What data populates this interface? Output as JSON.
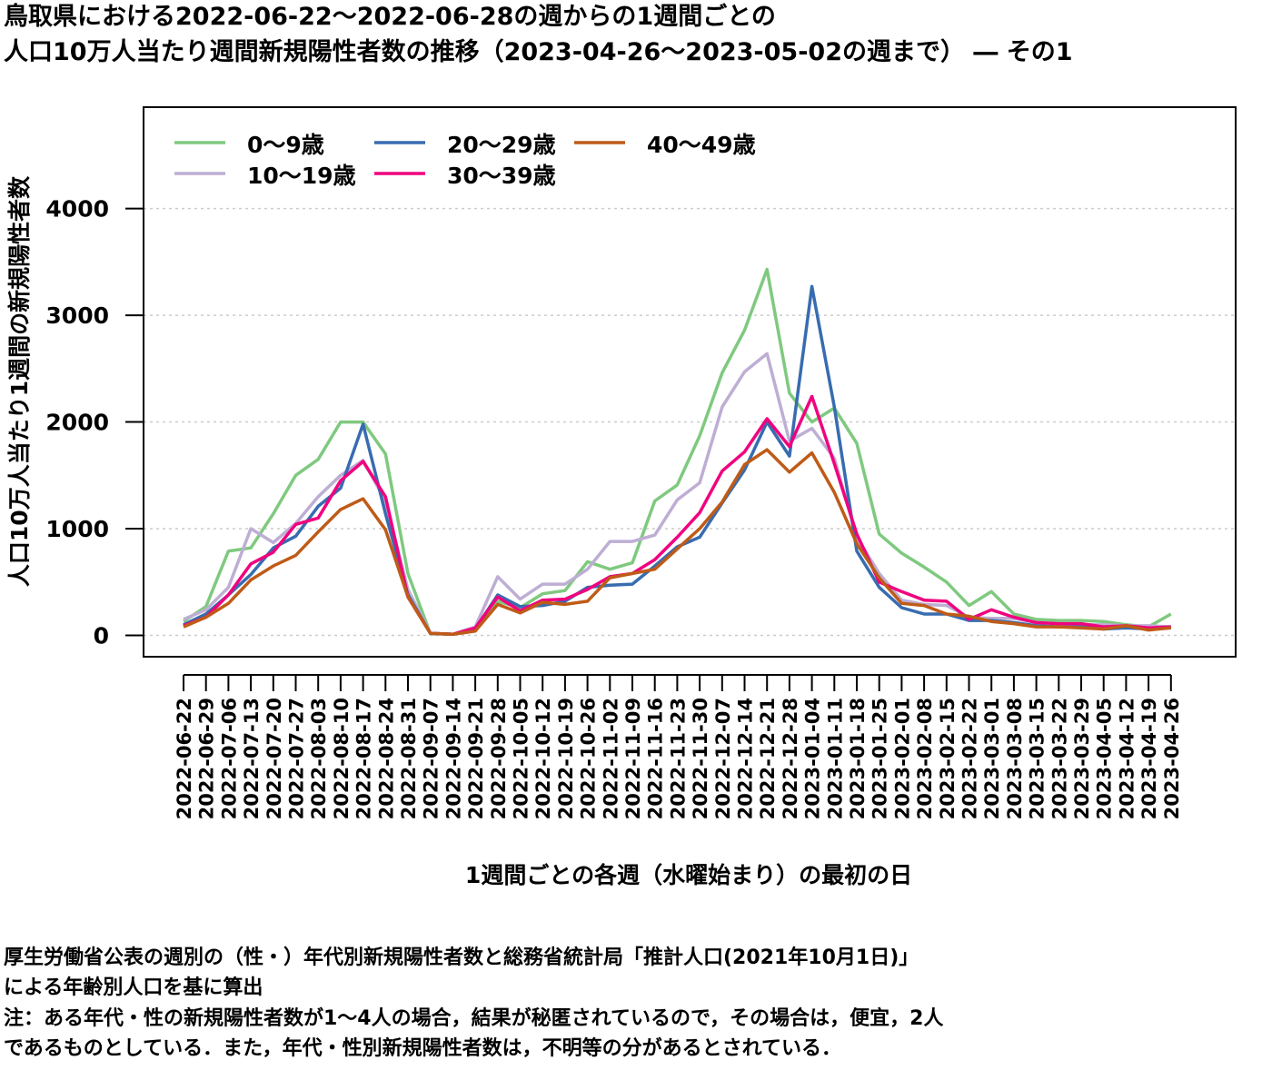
{
  "title_line1": "鳥取県における2022-06-22〜2022-06-28の週からの1週間ごとの",
  "title_line2": "人口10万人当たり週間新規陽性者数の推移（2023-04-26〜2023-05-02の週まで） ― その1",
  "notes": [
    "厚生労働省公表の週別の（性・）年代別新規陽性者数と総務省統計局「推計人口(2021年10月1日)」",
    "による年齢別人口を基に算出",
    "注：ある年代・性の新規陽性者数が1〜4人の場合，結果が秘匿されているので，その場合は，便宜，2人",
    "であるものとしている．また，年代・性別新規陽性者数は，不明等の分があるとされている．"
  ],
  "chart_data": {
    "type": "line",
    "xlabel": "1週間ごとの各週（水曜始まり）の最初の日",
    "ylabel": "人口10万人当たり1週間の新規陽性者数",
    "ylim": [
      -200,
      4950
    ],
    "yticks": [
      0,
      1000,
      2000,
      3000,
      4000
    ],
    "grid": "horizontal dotted",
    "legend_position": "top-left",
    "categories": [
      "2022-06-22",
      "2022-06-29",
      "2022-07-06",
      "2022-07-13",
      "2022-07-20",
      "2022-07-27",
      "2022-08-03",
      "2022-08-10",
      "2022-08-17",
      "2022-08-24",
      "2022-08-31",
      "2022-09-07",
      "2022-09-14",
      "2022-09-21",
      "2022-09-28",
      "2022-10-05",
      "2022-10-12",
      "2022-10-19",
      "2022-10-26",
      "2022-11-02",
      "2022-11-09",
      "2022-11-16",
      "2022-11-23",
      "2022-11-30",
      "2022-12-07",
      "2022-12-14",
      "2022-12-21",
      "2022-12-28",
      "2023-01-04",
      "2023-01-11",
      "2023-01-18",
      "2023-01-25",
      "2023-02-01",
      "2023-02-08",
      "2023-02-15",
      "2023-02-22",
      "2023-03-01",
      "2023-03-08",
      "2023-03-15",
      "2023-03-22",
      "2023-03-29",
      "2023-04-05",
      "2023-04-12",
      "2023-04-19",
      "2023-04-26"
    ],
    "series": [
      {
        "name": "0〜9歳",
        "color": "#7fc97f",
        "values": [
          130,
          270,
          790,
          820,
          1140,
          1500,
          1650,
          2000,
          2000,
          1700,
          580,
          15,
          10,
          60,
          320,
          260,
          390,
          420,
          690,
          620,
          680,
          1260,
          1410,
          1870,
          2460,
          2860,
          3430,
          2270,
          2000,
          2130,
          1800,
          950,
          770,
          640,
          500,
          280,
          410,
          200,
          150,
          140,
          140,
          130,
          100,
          80,
          200
        ]
      },
      {
        "name": "10〜19歳",
        "color": "#beaed4",
        "values": [
          150,
          240,
          450,
          1000,
          870,
          1050,
          1300,
          1500,
          1640,
          1260,
          430,
          20,
          10,
          80,
          550,
          340,
          480,
          480,
          620,
          880,
          880,
          940,
          1270,
          1430,
          2140,
          2470,
          2640,
          1820,
          1940,
          1660,
          920,
          580,
          330,
          290,
          280,
          170,
          160,
          160,
          120,
          110,
          100,
          100,
          90,
          90,
          80
        ]
      },
      {
        "name": "20〜29歳",
        "color": "#386cb0",
        "values": [
          100,
          200,
          380,
          570,
          820,
          930,
          1210,
          1380,
          1980,
          1140,
          380,
          20,
          10,
          60,
          380,
          270,
          280,
          320,
          450,
          470,
          480,
          650,
          830,
          920,
          1240,
          1550,
          2000,
          1680,
          3270,
          2140,
          790,
          450,
          260,
          200,
          200,
          140,
          140,
          120,
          90,
          80,
          80,
          60,
          70,
          60,
          80
        ]
      },
      {
        "name": "30〜39歳",
        "color": "#f0027f",
        "values": [
          90,
          170,
          380,
          670,
          780,
          1040,
          1100,
          1450,
          1630,
          1300,
          360,
          20,
          10,
          70,
          360,
          230,
          330,
          340,
          430,
          550,
          580,
          710,
          920,
          1150,
          1540,
          1720,
          2030,
          1770,
          2240,
          1610,
          950,
          500,
          410,
          330,
          320,
          150,
          240,
          170,
          120,
          110,
          110,
          80,
          90,
          70,
          80
        ]
      },
      {
        "name": "40〜49歳",
        "color": "#bf5b17",
        "values": [
          80,
          170,
          300,
          520,
          650,
          750,
          970,
          1180,
          1280,
          990,
          360,
          20,
          10,
          40,
          290,
          210,
          310,
          290,
          320,
          540,
          580,
          620,
          810,
          1000,
          1250,
          1600,
          1740,
          1530,
          1710,
          1340,
          860,
          540,
          300,
          280,
          200,
          180,
          130,
          110,
          80,
          80,
          70,
          60,
          90,
          50,
          70
        ]
      }
    ]
  }
}
